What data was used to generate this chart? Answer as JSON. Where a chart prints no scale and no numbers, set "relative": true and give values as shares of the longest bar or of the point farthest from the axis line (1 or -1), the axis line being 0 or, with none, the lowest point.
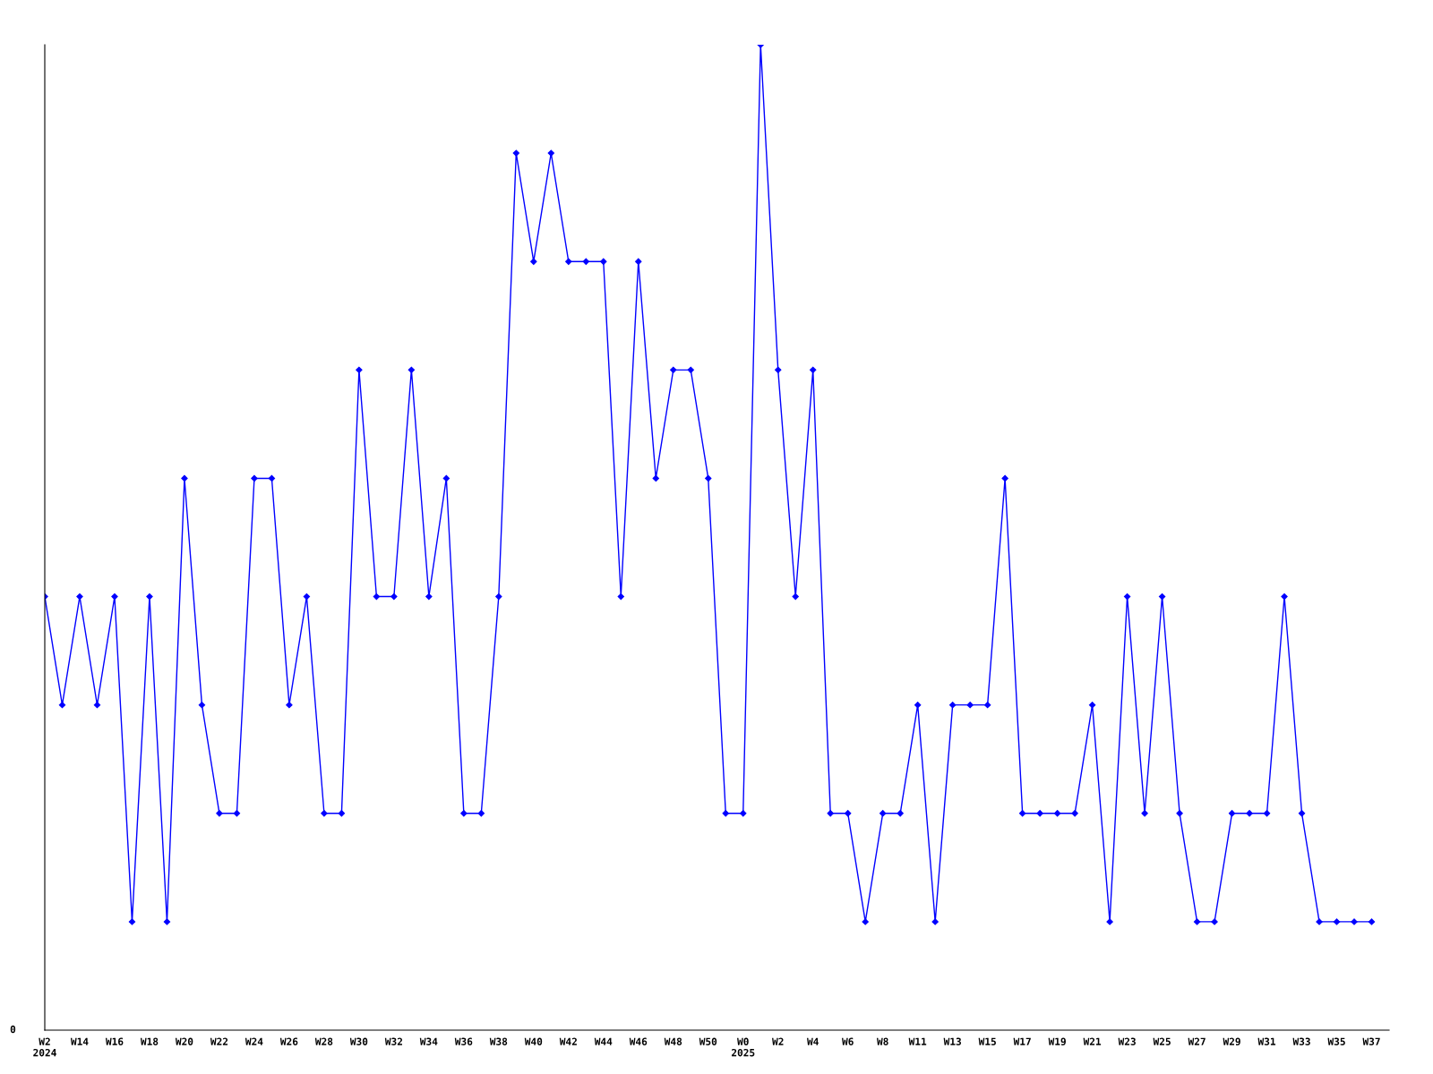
{
  "chart_data": {
    "type": "line",
    "relative": true,
    "color": "#0000ff",
    "marker": "diamond",
    "line_style": "solid",
    "grid": false,
    "legend": false,
    "categories": [
      "W2\n2024",
      null,
      "W14",
      null,
      "W16",
      null,
      "W18",
      null,
      "W20",
      null,
      "W22",
      null,
      "W24",
      null,
      "W26",
      null,
      "W28",
      null,
      "W30",
      null,
      "W32",
      null,
      "W34",
      null,
      "W36",
      null,
      "W38",
      null,
      "W40",
      null,
      "W42",
      null,
      "W44",
      null,
      "W46",
      null,
      "W48",
      null,
      "W50",
      null,
      "W0\n2025",
      null,
      "W2",
      null,
      "W4",
      null,
      "W6",
      null,
      "W8",
      null,
      "W11",
      null,
      "W13",
      null,
      "W15",
      null,
      "W17",
      null,
      "W19",
      null,
      "W21",
      null,
      "W23",
      null,
      "W25",
      null,
      "W27",
      null,
      "W29",
      null,
      "W31",
      null,
      "W33",
      null,
      "W35",
      null,
      "W37"
    ],
    "values": [
      0.44,
      0.33,
      0.44,
      0.33,
      0.44,
      0.11,
      0.44,
      0.11,
      0.56,
      0.33,
      0.22,
      0.22,
      0.56,
      0.56,
      0.33,
      0.44,
      0.22,
      0.22,
      0.67,
      0.44,
      0.44,
      0.67,
      0.44,
      0.56,
      0.22,
      0.22,
      0.44,
      0.89,
      0.78,
      0.89,
      0.78,
      0.78,
      0.78,
      0.44,
      0.78,
      0.56,
      0.67,
      0.67,
      0.56,
      0.22,
      0.22,
      1,
      0.67,
      0.44,
      0.67,
      0.22,
      0.22,
      0.11,
      0.22,
      0.22,
      0.33,
      0.11,
      0.33,
      0.33,
      0.33,
      0.56,
      0.22,
      0.22,
      0.22,
      0.22,
      0.33,
      0.11,
      0.44,
      0.22,
      0.44,
      0.22,
      0.11,
      0.11,
      0.22,
      0.22,
      0.22,
      0.44,
      0.22,
      0.11,
      0.11,
      0.11,
      0.11
    ],
    "annotations": [
      "0"
    ]
  }
}
